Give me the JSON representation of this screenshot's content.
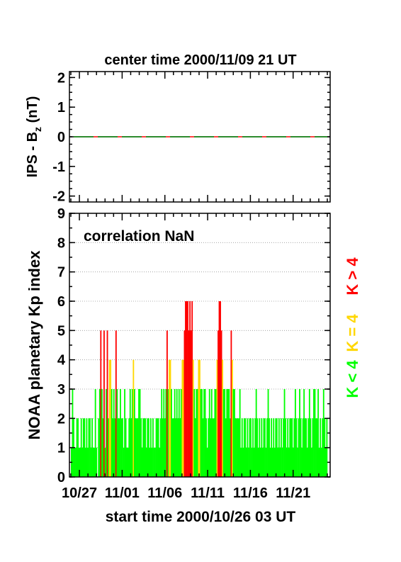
{
  "chart_data": [
    {
      "type": "line",
      "title": "center time 2000/11/09 21 UT",
      "ylabel": "IPS - B",
      "ylabel_subscript": "z",
      "ylabel_unit": " (nT)",
      "ylim": [
        -2.2,
        2.2
      ],
      "yticks": [
        -2,
        -1,
        0,
        1,
        2
      ],
      "series": [
        {
          "values": [
            0,
            0,
            0,
            0,
            0,
            0,
            0,
            0,
            0,
            0
          ],
          "color": "#2e8b2e",
          "dash_color": "#ff0000"
        }
      ]
    },
    {
      "type": "bar",
      "annotation": "correlation NaN",
      "ylabel": "NOAA planetary Kp index",
      "xlabel": "start time 2000/10/26 03 UT",
      "ylim": [
        0,
        9
      ],
      "yticks": [
        0,
        1,
        2,
        3,
        4,
        5,
        6,
        7,
        8,
        9
      ],
      "xticks": [
        "10/27",
        "11/01",
        "11/06",
        "11/11",
        "11/16",
        "11/21"
      ],
      "grid": true,
      "legend": [
        {
          "label": "K < 4",
          "color": "#00ff00"
        },
        {
          "label": "K = 4",
          "color": "#ffd700"
        },
        {
          "label": "K > 4",
          "color": "#ff0000"
        }
      ],
      "colors": {
        "low": "#00ff00",
        "mid": "#ffd700",
        "high": "#ff0000"
      },
      "days_span": 30,
      "kp": [
        1,
        3,
        2,
        1,
        1,
        2,
        2,
        1,
        1,
        2,
        1,
        2,
        2,
        1,
        2,
        1,
        2,
        2,
        1,
        2,
        1,
        1,
        3,
        1,
        0,
        2,
        3,
        5,
        3,
        2,
        5,
        1,
        3,
        5,
        2,
        4,
        4,
        3,
        2,
        3,
        2,
        5,
        3,
        2,
        2,
        3,
        2,
        2,
        1,
        3,
        2,
        1,
        1,
        2,
        3,
        2,
        3,
        4,
        3,
        2,
        2,
        2,
        3,
        3,
        2,
        1,
        2,
        2,
        2,
        1,
        2,
        2,
        1,
        2,
        1,
        2,
        1,
        1,
        2,
        2,
        2,
        1,
        2,
        3,
        2,
        3,
        2,
        3,
        5,
        3,
        4,
        4,
        3,
        2,
        2,
        3,
        2,
        3,
        2,
        3,
        2,
        3,
        4,
        4,
        5,
        6,
        6,
        6,
        5,
        6,
        5,
        6,
        4,
        3,
        2,
        3,
        3,
        4,
        4,
        3,
        3,
        2,
        3,
        3,
        2,
        1,
        2,
        3,
        2,
        3,
        2,
        2,
        3,
        3,
        4,
        5,
        6,
        6,
        5,
        4,
        3,
        3,
        2,
        3,
        3,
        3,
        2,
        5,
        4,
        3,
        3,
        2,
        2,
        2,
        2,
        3,
        1,
        2,
        1,
        2,
        2,
        1,
        2,
        1,
        2,
        2,
        1,
        2,
        1,
        2,
        3,
        2,
        1,
        2,
        1,
        2,
        1,
        2,
        2,
        1,
        2,
        3,
        2,
        1,
        2,
        1,
        2,
        1,
        2,
        2,
        1,
        2,
        1,
        2,
        1,
        2,
        3,
        2,
        1,
        2,
        1,
        2,
        2,
        2,
        1,
        2,
        3,
        2,
        1,
        2,
        3,
        2,
        1,
        2,
        3,
        2,
        2,
        1,
        2,
        3,
        2,
        1,
        2,
        3,
        3,
        2,
        2,
        3,
        1,
        2,
        1,
        2,
        3,
        2,
        1,
        2
      ]
    }
  ]
}
